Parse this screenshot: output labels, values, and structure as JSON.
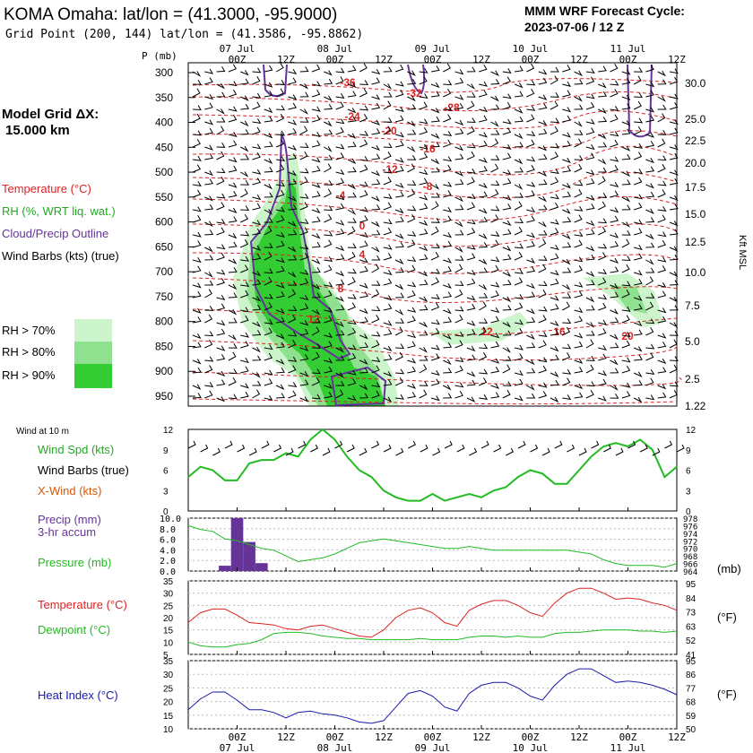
{
  "header": {
    "title": "KOMA Omaha:  lat/lon = (41.3000, -95.9000)",
    "grid_point": "Grid Point (200, 144) lat/lon = (41.3586, -95.8862)",
    "cycle_line1": "MMM WRF Forecast Cycle:",
    "cycle_line2": "2023-07-06 / 12  Z"
  },
  "side_labels": {
    "model_grid_1": "Model Grid ΔX:",
    "model_grid_2": "15.000 km",
    "temperature": "Temperature (°C)",
    "rh": "RH (%, WRT liq. wat.)",
    "cloud": "Cloud/Precip Outline",
    "wind_barbs": "Wind Barbs (kts) (true)",
    "rh70": "RH > 70%",
    "rh80": "RH > 80%",
    "rh90": "RH > 90%",
    "wind10": "Wind at 10 m",
    "wind_spd": "Wind Spd (kts)",
    "wind_barbs2": "Wind Barbs (true)",
    "xwind": "X-Wind (kts)",
    "precip1": "Precip (mm)",
    "precip2": "3-hr accum",
    "pressure": "Pressure (mb)",
    "temp2": "Temperature (°C)",
    "dewpoint": "Dewpoint (°C)",
    "heat_index": "Heat Index (°C)",
    "mb_unit": "(mb)",
    "f_unit": "(°F)",
    "kft": "Kft MSL",
    "p_label": "P (mb)"
  },
  "colors": {
    "temperature": "#dd2222",
    "rh": "#22aa22",
    "cloud": "#663399",
    "pressure": "#22bb22",
    "heat_index": "#1a1aaa",
    "precip": "#663399",
    "rh70": "#ccf5cc",
    "rh80": "#8fe08f",
    "rh90": "#33cc33",
    "orange_label": "#dd5500"
  },
  "chart_data": [
    {
      "type": "area",
      "name": "sounding",
      "time_ticks": [
        "00Z",
        "12Z",
        "00Z",
        "12Z",
        "00Z",
        "12Z",
        "00Z",
        "12Z",
        "00Z",
        "12Z"
      ],
      "date_ticks": [
        "07 Jul",
        "08 Jul",
        "09 Jul",
        "10 Jul",
        "11 Jul"
      ],
      "pressure_levels": [
        300,
        350,
        400,
        450,
        500,
        550,
        600,
        650,
        700,
        750,
        800,
        850,
        900,
        950
      ],
      "height_ticks": [
        "30.0",
        "25.0",
        "22.5",
        "20.0",
        "17.5",
        "15.0",
        "12.5",
        "10.0",
        "7.5",
        "5.0",
        "2.5",
        "1.22"
      ],
      "temperature_labels": [
        "-36",
        "-32",
        "-28",
        "-24",
        "-20",
        "-16",
        "-12",
        "-8",
        "-4",
        "0",
        "4",
        "8",
        "12",
        "12",
        "16",
        "20"
      ]
    },
    {
      "type": "line",
      "name": "wind",
      "y_ticks": [
        12,
        9,
        6,
        3,
        0
      ],
      "ylim": [
        0,
        12
      ],
      "x_hours": [
        0,
        3,
        6,
        9,
        12,
        15,
        18,
        21,
        24,
        27,
        30,
        33,
        36,
        39,
        42,
        45,
        48,
        51,
        54,
        57,
        60,
        63,
        66,
        69,
        72,
        75,
        78,
        81,
        84,
        87,
        90,
        93,
        96,
        99,
        102,
        105,
        108,
        111,
        114,
        117,
        120
      ],
      "wind_speed": [
        5,
        6.5,
        6,
        4.5,
        4.5,
        7,
        7.5,
        7.5,
        8.5,
        8,
        10.5,
        12,
        10.5,
        8,
        6,
        5,
        3,
        2,
        1.5,
        1.5,
        2.5,
        1.5,
        2,
        2.5,
        2,
        3,
        3.5,
        5,
        6,
        5.5,
        4,
        4,
        6,
        8,
        9.5,
        10,
        9.5,
        10.5,
        9,
        5,
        6.5
      ]
    },
    {
      "type": "bar",
      "name": "precip_pressure",
      "precip_ylim": [
        0,
        10
      ],
      "precip_ticks": [
        "10.0",
        "8.0",
        "6.0",
        "4.0",
        "2.0",
        "0.0"
      ],
      "pressure_ticks": [
        "978",
        "976",
        "974",
        "972",
        "970",
        "968",
        "966",
        "964"
      ],
      "pressure_ylim": [
        964,
        978
      ],
      "precip_bars": [
        {
          "hour": 9,
          "value": 1
        },
        {
          "hour": 12,
          "value": 10
        },
        {
          "hour": 15,
          "value": 5.5
        },
        {
          "hour": 18,
          "value": 1.5
        }
      ],
      "pressure": [
        976,
        975,
        974.5,
        972.5,
        972,
        971,
        970,
        969.5,
        968,
        966.5,
        967,
        967.5,
        968.5,
        970,
        971.5,
        972,
        972.5,
        972,
        971.5,
        971,
        970.5,
        970,
        970,
        970.5,
        970,
        969.5,
        969.5,
        969.5,
        969.5,
        969.5,
        969.5,
        969.5,
        969,
        968.5,
        967,
        966,
        965.5,
        965.5,
        965.5,
        965,
        966
      ]
    },
    {
      "type": "line",
      "name": "temp_dew",
      "ylim": [
        5,
        35
      ],
      "y_ticks": [
        35,
        30,
        25,
        20,
        15,
        10,
        5
      ],
      "f_ticks": [
        "95",
        "84",
        "73",
        "63",
        "52",
        "41"
      ],
      "temperature": [
        18,
        22,
        23.5,
        23.5,
        21,
        18,
        17.5,
        17,
        15.5,
        15,
        16.5,
        17,
        15.5,
        14,
        12.5,
        12,
        15,
        20,
        23,
        24,
        22,
        18,
        16.5,
        23,
        25.5,
        27,
        27,
        25,
        22,
        20.5,
        26,
        30,
        32,
        32,
        30,
        27.5,
        28,
        27.5,
        26,
        25,
        23
      ],
      "dewpoint": [
        10,
        8.5,
        8,
        8,
        9,
        9.5,
        11,
        13.5,
        14,
        14,
        13.5,
        12.5,
        12,
        11.5,
        11.5,
        11,
        11,
        11,
        11,
        11.5,
        11,
        11,
        11,
        12,
        12.5,
        12.5,
        12,
        12.5,
        12,
        12,
        13.5,
        14,
        14,
        14.5,
        15,
        15,
        15,
        14.5,
        14.5,
        14,
        14.5
      ]
    },
    {
      "type": "line",
      "name": "heat_index",
      "ylim": [
        10,
        35
      ],
      "y_ticks": [
        35,
        30,
        25,
        20,
        15,
        10
      ],
      "f_ticks": [
        "95",
        "86",
        "77",
        "68",
        "59",
        "50"
      ],
      "heat_index": [
        17,
        21,
        23.5,
        23.5,
        20.5,
        17,
        17,
        16,
        14,
        16,
        16.5,
        15.5,
        15,
        14,
        12.5,
        12,
        13,
        18,
        23,
        24,
        22,
        18,
        16.5,
        23,
        26,
        27,
        27,
        25,
        22,
        20.5,
        26,
        30,
        32,
        32,
        29.5,
        27,
        27.5,
        27,
        26,
        24.5,
        22.5
      ]
    }
  ]
}
